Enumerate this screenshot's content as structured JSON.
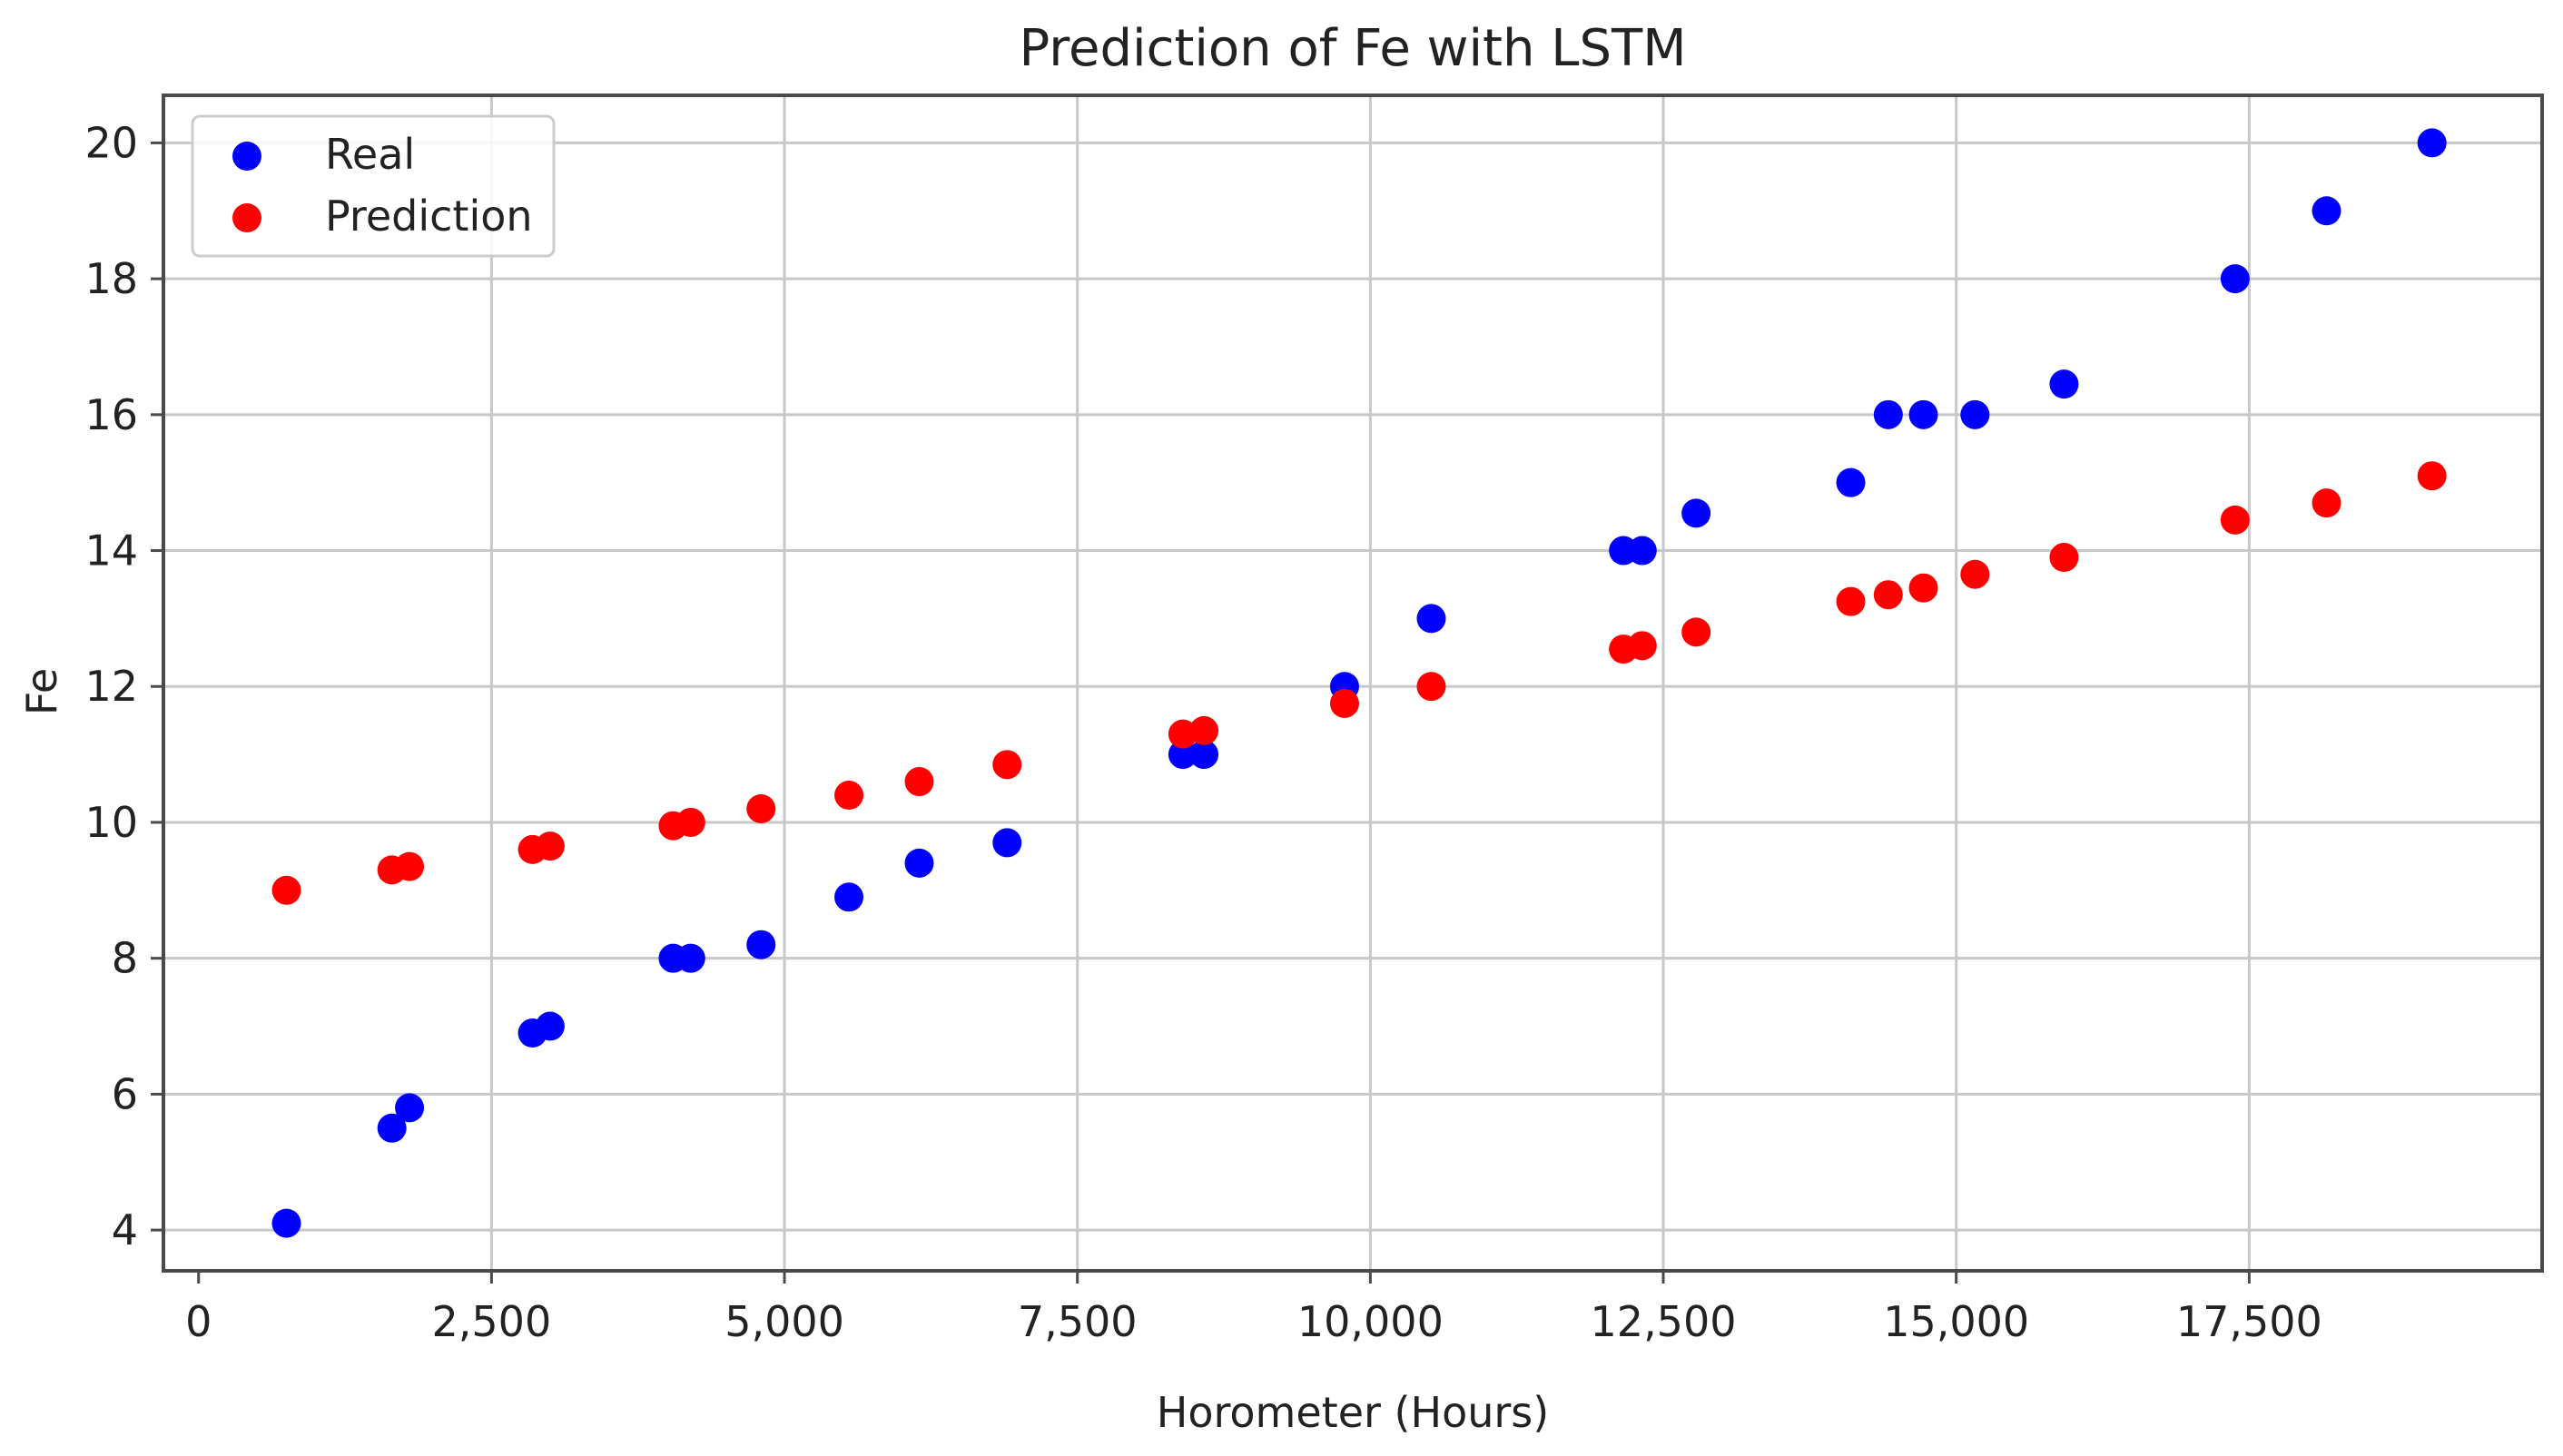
{
  "chart_data": {
    "type": "scatter",
    "title": "Prediction of Fe with LSTM",
    "xlabel": "Horometer (Hours)",
    "ylabel": "Fe",
    "xlim": [
      -300,
      20000
    ],
    "ylim": [
      3.4,
      20.7
    ],
    "xticks": [
      0,
      2500,
      5000,
      7500,
      10000,
      12500,
      15000,
      17500
    ],
    "xtick_labels": [
      "0",
      "2,500",
      "5,000",
      "7,500",
      "10,000",
      "12,500",
      "15,000",
      "17,500"
    ],
    "yticks": [
      4,
      6,
      8,
      10,
      12,
      14,
      16,
      18,
      20
    ],
    "ytick_labels": [
      "4",
      "6",
      "8",
      "10",
      "12",
      "14",
      "16",
      "18",
      "20"
    ],
    "grid": true,
    "legend_position": "top-left",
    "x": [
      750,
      1650,
      1800,
      2850,
      3000,
      4050,
      4200,
      4800,
      5550,
      6150,
      6900,
      8400,
      8580,
      9780,
      10520,
      12160,
      12320,
      12780,
      14100,
      14420,
      14720,
      15160,
      15920,
      17380,
      18160,
      19060
    ],
    "series": [
      {
        "name": "Real",
        "color": "#0000ff",
        "values": [
          4.1,
          5.5,
          5.8,
          6.9,
          7.0,
          8.0,
          8.0,
          8.2,
          8.9,
          9.4,
          9.7,
          11.0,
          11.0,
          12.0,
          13.0,
          14.0,
          14.0,
          14.55,
          15.0,
          16.0,
          16.0,
          16.0,
          16.45,
          18.0,
          19.0,
          20.0
        ]
      },
      {
        "name": "Prediction",
        "color": "#ff0000",
        "values": [
          9.0,
          9.3,
          9.35,
          9.6,
          9.65,
          9.95,
          10.0,
          10.2,
          10.4,
          10.6,
          10.85,
          11.3,
          11.35,
          11.75,
          12.0,
          12.55,
          12.6,
          12.8,
          13.25,
          13.35,
          13.45,
          13.65,
          13.9,
          14.45,
          14.7,
          15.1
        ]
      }
    ]
  }
}
